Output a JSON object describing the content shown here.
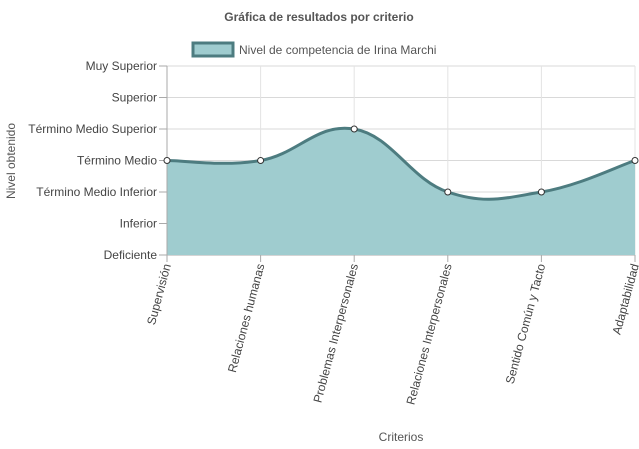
{
  "chart_data": {
    "type": "area",
    "title": "Gráfica de resultados por criterio",
    "xlabel": "Criterios",
    "ylabel": "Nivel obtenido",
    "categories": [
      "Supervisión",
      "Relaciones humanas",
      "Problemas Interpersonales",
      "Relaciones Interpersonales",
      "Sentido Común y Tacto",
      "Adaptabilidad"
    ],
    "y_levels": [
      "Deficiente",
      "Inferior",
      "Término Medio Inferior",
      "Término Medio",
      "Término Medio Superior",
      "Superior",
      "Muy Superior"
    ],
    "ylim": [
      0,
      6
    ],
    "grid": true,
    "legend_position": "top",
    "series": [
      {
        "name": "Nivel de competencia de Irina Marchi",
        "values": [
          3,
          3,
          4,
          2,
          2,
          3
        ],
        "fill_color": "#9fcccf",
        "line_color": "#4d7c80"
      }
    ]
  }
}
